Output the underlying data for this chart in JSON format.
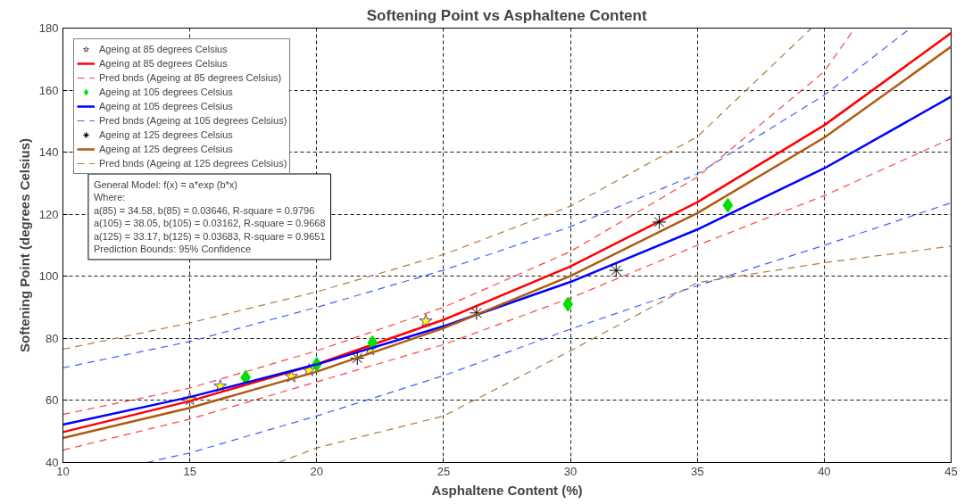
{
  "chart_data": {
    "type": "line",
    "title": "Softening Point vs Asphaltene Content",
    "xlabel": "Asphaltene Content (%)",
    "ylabel": "Softening Point (degrees Celsius)",
    "xlim": [
      10,
      45
    ],
    "ylim": [
      40,
      180
    ],
    "xticks": [
      10,
      15,
      20,
      25,
      30,
      35,
      40,
      45
    ],
    "yticks": [
      40,
      60,
      80,
      100,
      120,
      140,
      160,
      180
    ],
    "grid": true,
    "legend": "top left",
    "series": [
      {
        "name": "Ageing at 85 degrees Celsius",
        "type": "scatter",
        "marker": "star",
        "color": "#ffff00",
        "x": [
          15.0,
          16.2,
          19.0,
          19.7,
          22.1,
          24.3
        ],
        "values": [
          60.4,
          64.6,
          67.7,
          69.7,
          76.4,
          85.6
        ]
      },
      {
        "name": "Ageing at 85 degrees Celsius",
        "line_style": "solid",
        "color": "#ff0000",
        "x": [
          10,
          15,
          20,
          25,
          30,
          35,
          40,
          45
        ],
        "values": [
          49.8,
          59.8,
          71.7,
          86.0,
          103.2,
          123.9,
          148.7,
          178.4
        ]
      },
      {
        "name": "Pred bnds (Ageing at 85 degrees Celsius)",
        "line_style": "dashed",
        "color": "#ff4040",
        "x": [
          10,
          15,
          20,
          25,
          30,
          35,
          40,
          41.2
        ],
        "values": [
          55.5,
          64,
          76,
          90,
          108,
          132,
          166,
          180
        ]
      },
      {
        "line_style": "dashed",
        "color": "#ff4040",
        "x": [
          10,
          15,
          20,
          25,
          30,
          35,
          40,
          45
        ],
        "values": [
          44,
          54,
          66,
          78,
          93,
          110,
          126,
          144.4
        ]
      },
      {
        "name": "Ageing at 105 degrees Celsius",
        "type": "scatter",
        "marker": "diamond",
        "color": "#00e000",
        "x": [
          17.2,
          20.0,
          22.2,
          29.9,
          36.2
        ],
        "values": [
          67.4,
          71.6,
          78.6,
          91.0,
          122.9
        ]
      },
      {
        "name": "Ageing at 105 degrees Celsius",
        "line_style": "solid",
        "color": "#0000ff",
        "x": [
          10,
          15,
          20,
          25,
          30,
          35,
          40,
          45
        ],
        "values": [
          52.2,
          61.1,
          71.6,
          83.9,
          98.2,
          115.1,
          134.8,
          157.9
        ]
      },
      {
        "name": "Pred bnds (Ageing at 105 degrees Celsius)",
        "line_style": "dashed",
        "color": "#4060ff",
        "x": [
          10,
          15,
          20,
          25,
          30,
          35,
          40,
          43.4
        ],
        "values": [
          70.5,
          79,
          90,
          102,
          116,
          133,
          158.4,
          180
        ]
      },
      {
        "line_style": "dashed",
        "color": "#4060ff",
        "x": [
          13.3,
          15,
          20,
          25,
          30,
          35,
          40,
          45
        ],
        "values": [
          40,
          43.1,
          55,
          68,
          83,
          97,
          110,
          123.7
        ]
      },
      {
        "name": "Ageing at 125 degrees Celsius",
        "type": "scatter",
        "marker": "cross",
        "color": "#000000",
        "x": [
          21.6,
          26.3,
          31.8,
          33.5
        ],
        "values": [
          73.6,
          88.2,
          101.9,
          117.5
        ]
      },
      {
        "name": "Ageing at 125 degrees Celsius",
        "line_style": "solid",
        "color": "#b05a10",
        "x": [
          10,
          15,
          20,
          25,
          30,
          35,
          40,
          45
        ],
        "values": [
          47.9,
          57.6,
          69.3,
          83.3,
          100.1,
          120.4,
          144.7,
          174.0
        ]
      },
      {
        "name": "Pred bnds (Ageing at 125 degrees Celsius)",
        "line_style": "dashed",
        "color": "#b07840",
        "x": [
          10,
          15,
          20,
          25,
          30,
          35,
          39.5
        ],
        "values": [
          76.5,
          85,
          95,
          107,
          122.6,
          145,
          180
        ]
      },
      {
        "line_style": "dashed",
        "color": "#b07840",
        "x": [
          18.5,
          20,
          25,
          30,
          35,
          40,
          45
        ],
        "values": [
          40,
          44.7,
          55,
          76,
          98,
          104.4,
          109.7
        ]
      }
    ],
    "annotations": [
      "General Model: f(x) = a*exp (b*x)",
      "Where:",
      "a(85) = 34.58, b(85) = 0.03646, R-square = 0.9796",
      "a(105) = 38.05, b(105) = 0.03162, R-square = 0.9668",
      "a(125) = 33.17, b(125) = 0.03683, R-square = 0.9651",
      "Prediction Bounds: 95% Confidence"
    ]
  }
}
